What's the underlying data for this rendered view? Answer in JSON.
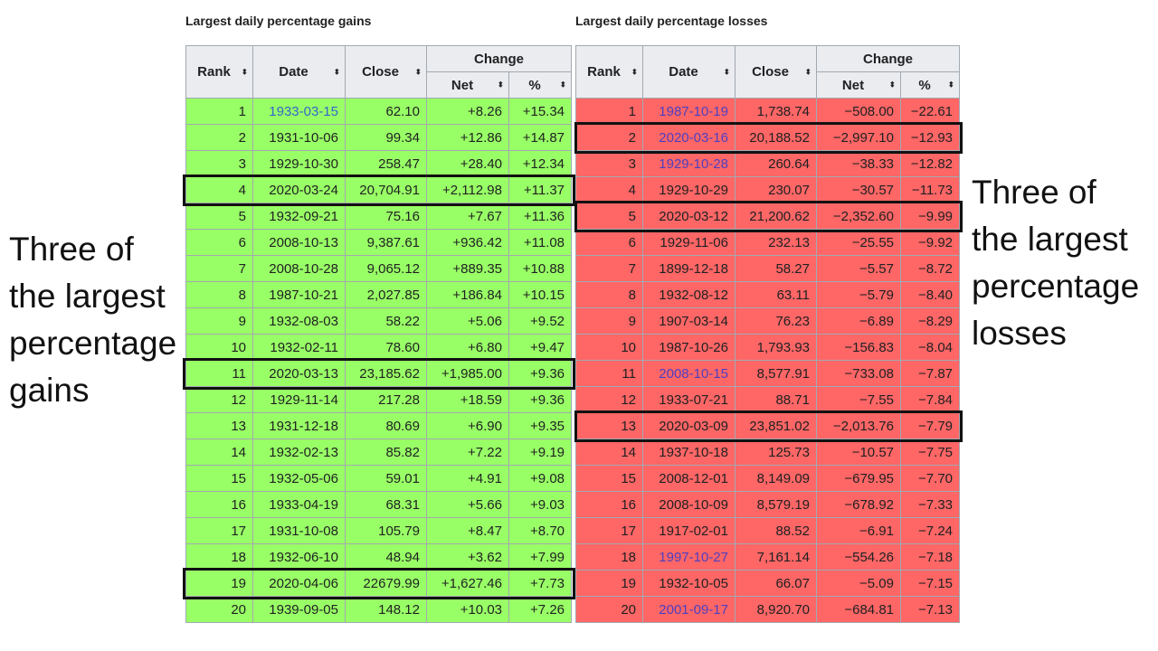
{
  "gains": {
    "caption": "Largest daily percentage gains",
    "headers": {
      "rank": "Rank",
      "date": "Date",
      "close": "Close",
      "change": "Change",
      "net": "Net",
      "pct": "%"
    },
    "rows": [
      {
        "rank": "1",
        "date": "1933-03-15",
        "close": "62.10",
        "net": "+8.26",
        "pct": "+15.34",
        "link": true
      },
      {
        "rank": "2",
        "date": "1931-10-06",
        "close": "99.34",
        "net": "+12.86",
        "pct": "+14.87"
      },
      {
        "rank": "3",
        "date": "1929-10-30",
        "close": "258.47",
        "net": "+28.40",
        "pct": "+12.34"
      },
      {
        "rank": "4",
        "date": "2020-03-24",
        "close": "20,704.91",
        "net": "+2,112.98",
        "pct": "+11.37",
        "hl": true
      },
      {
        "rank": "5",
        "date": "1932-09-21",
        "close": "75.16",
        "net": "+7.67",
        "pct": "+11.36"
      },
      {
        "rank": "6",
        "date": "2008-10-13",
        "close": "9,387.61",
        "net": "+936.42",
        "pct": "+11.08"
      },
      {
        "rank": "7",
        "date": "2008-10-28",
        "close": "9,065.12",
        "net": "+889.35",
        "pct": "+10.88"
      },
      {
        "rank": "8",
        "date": "1987-10-21",
        "close": "2,027.85",
        "net": "+186.84",
        "pct": "+10.15"
      },
      {
        "rank": "9",
        "date": "1932-08-03",
        "close": "58.22",
        "net": "+5.06",
        "pct": "+9.52"
      },
      {
        "rank": "10",
        "date": "1932-02-11",
        "close": "78.60",
        "net": "+6.80",
        "pct": "+9.47"
      },
      {
        "rank": "11",
        "date": "2020-03-13",
        "close": "23,185.62",
        "net": "+1,985.00",
        "pct": "+9.36",
        "hl": true
      },
      {
        "rank": "12",
        "date": "1929-11-14",
        "close": "217.28",
        "net": "+18.59",
        "pct": "+9.36"
      },
      {
        "rank": "13",
        "date": "1931-12-18",
        "close": "80.69",
        "net": "+6.90",
        "pct": "+9.35"
      },
      {
        "rank": "14",
        "date": "1932-02-13",
        "close": "85.82",
        "net": "+7.22",
        "pct": "+9.19"
      },
      {
        "rank": "15",
        "date": "1932-05-06",
        "close": "59.01",
        "net": "+4.91",
        "pct": "+9.08"
      },
      {
        "rank": "16",
        "date": "1933-04-19",
        "close": "68.31",
        "net": "+5.66",
        "pct": "+9.03"
      },
      {
        "rank": "17",
        "date": "1931-10-08",
        "close": "105.79",
        "net": "+8.47",
        "pct": "+8.70"
      },
      {
        "rank": "18",
        "date": "1932-06-10",
        "close": "48.94",
        "net": "+3.62",
        "pct": "+7.99"
      },
      {
        "rank": "19",
        "date": "2020-04-06",
        "close": "22679.99",
        "net": "+1,627.46",
        "pct": "+7.73",
        "hl": true
      },
      {
        "rank": "20",
        "date": "1939-09-05",
        "close": "148.12",
        "net": "+10.03",
        "pct": "+7.26"
      }
    ]
  },
  "losses": {
    "caption": "Largest daily percentage losses",
    "headers": {
      "rank": "Rank",
      "date": "Date",
      "close": "Close",
      "change": "Change",
      "net": "Net",
      "pct": "%"
    },
    "rows": [
      {
        "rank": "1",
        "date": "1987-10-19",
        "close": "1,738.74",
        "net": "−508.00",
        "pct": "−22.61",
        "link": true
      },
      {
        "rank": "2",
        "date": "2020-03-16",
        "close": "20,188.52",
        "net": "−2,997.10",
        "pct": "−12.93",
        "link": true,
        "hl": true
      },
      {
        "rank": "3",
        "date": "1929-10-28",
        "close": "260.64",
        "net": "−38.33",
        "pct": "−12.82",
        "link": true
      },
      {
        "rank": "4",
        "date": "1929-10-29",
        "close": "230.07",
        "net": "−30.57",
        "pct": "−11.73"
      },
      {
        "rank": "5",
        "date": "2020-03-12",
        "close": "21,200.62",
        "net": "−2,352.60",
        "pct": "−9.99",
        "hl": true
      },
      {
        "rank": "6",
        "date": "1929-11-06",
        "close": "232.13",
        "net": "−25.55",
        "pct": "−9.92"
      },
      {
        "rank": "7",
        "date": "1899-12-18",
        "close": "58.27",
        "net": "−5.57",
        "pct": "−8.72"
      },
      {
        "rank": "8",
        "date": "1932-08-12",
        "close": "63.11",
        "net": "−5.79",
        "pct": "−8.40"
      },
      {
        "rank": "9",
        "date": "1907-03-14",
        "close": "76.23",
        "net": "−6.89",
        "pct": "−8.29"
      },
      {
        "rank": "10",
        "date": "1987-10-26",
        "close": "1,793.93",
        "net": "−156.83",
        "pct": "−8.04"
      },
      {
        "rank": "11",
        "date": "2008-10-15",
        "close": "8,577.91",
        "net": "−733.08",
        "pct": "−7.87",
        "link": true
      },
      {
        "rank": "12",
        "date": "1933-07-21",
        "close": "88.71",
        "net": "−7.55",
        "pct": "−7.84"
      },
      {
        "rank": "13",
        "date": "2020-03-09",
        "close": "23,851.02",
        "net": "−2,013.76",
        "pct": "−7.79",
        "hl": true
      },
      {
        "rank": "14",
        "date": "1937-10-18",
        "close": "125.73",
        "net": "−10.57",
        "pct": "−7.75"
      },
      {
        "rank": "15",
        "date": "2008-12-01",
        "close": "8,149.09",
        "net": "−679.95",
        "pct": "−7.70"
      },
      {
        "rank": "16",
        "date": "2008-10-09",
        "close": "8,579.19",
        "net": "−678.92",
        "pct": "−7.33"
      },
      {
        "rank": "17",
        "date": "1917-02-01",
        "close": "88.52",
        "net": "−6.91",
        "pct": "−7.24"
      },
      {
        "rank": "18",
        "date": "1997-10-27",
        "close": "7,161.14",
        "net": "−554.26",
        "pct": "−7.18",
        "link": true
      },
      {
        "rank": "19",
        "date": "1932-10-05",
        "close": "66.07",
        "net": "−5.09",
        "pct": "−7.15"
      },
      {
        "rank": "20",
        "date": "2001-09-17",
        "close": "8,920.70",
        "net": "−684.81",
        "pct": "−7.13",
        "link": true
      }
    ]
  },
  "annotations": {
    "left_lines": [
      "Three of",
      "the largest",
      "percentage",
      "gains"
    ],
    "right_lines": [
      "Three of",
      "the largest",
      "percentage",
      "losses"
    ]
  },
  "colors": {
    "gain_bg": "#99ff66",
    "loss_bg": "#ff6666",
    "header_bg": "#eaecf0",
    "link": "#3366cc",
    "border": "#a2a9b1",
    "highlight": "#111111"
  },
  "icons": {
    "sort": "sort-arrows-icon"
  }
}
